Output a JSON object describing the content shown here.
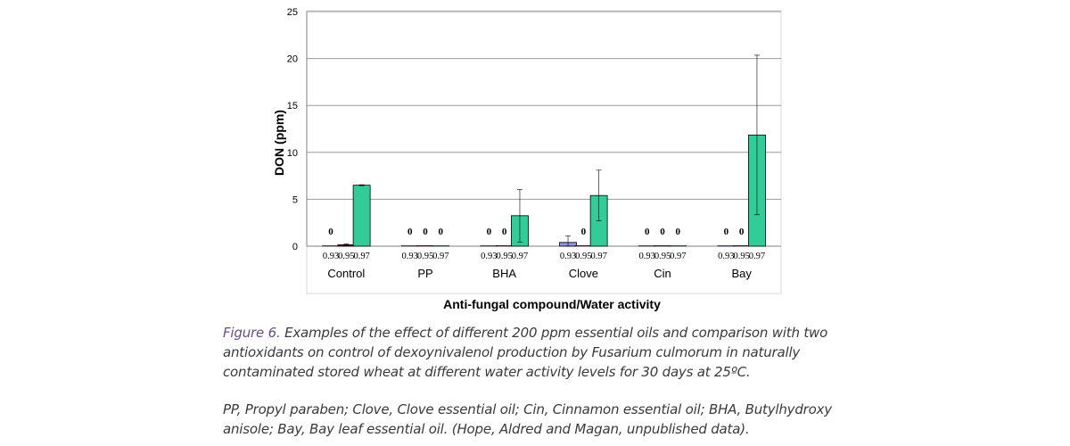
{
  "chart_data": {
    "type": "bar",
    "xlabel": "Anti-fungal compound/Water activity",
    "ylabel": "DON (ppm)",
    "ylim": [
      0,
      25
    ],
    "yticks": [
      "0",
      "5",
      "10",
      "15",
      "20",
      "25"
    ],
    "grid": true,
    "water_activities": [
      "0.93",
      "0.95",
      "0.97"
    ],
    "series_colors": [
      "#8f8fe6",
      "#7a1f45",
      "#33cc99"
    ],
    "groups": [
      {
        "label": "Control",
        "values": [
          0,
          0.15,
          6.5
        ],
        "errors": [
          0,
          0.1,
          0.05
        ],
        "zero_labels": [
          "0",
          "",
          ""
        ]
      },
      {
        "label": "PP",
        "values": [
          0,
          0,
          0
        ],
        "errors": [
          0,
          0,
          0
        ],
        "zero_labels": [
          "0",
          "0",
          "0"
        ]
      },
      {
        "label": "BHA",
        "values": [
          0,
          0,
          3.25
        ],
        "errors": [
          0,
          0,
          2.8
        ],
        "zero_labels": [
          "0",
          "0",
          ""
        ]
      },
      {
        "label": "Clove",
        "values": [
          0.4,
          0,
          5.4
        ],
        "errors": [
          0.7,
          0,
          2.7
        ],
        "zero_labels": [
          "",
          "0",
          ""
        ]
      },
      {
        "label": "Cin",
        "values": [
          0,
          0,
          0
        ],
        "errors": [
          0,
          0,
          0
        ],
        "zero_labels": [
          "0",
          "0",
          "0"
        ]
      },
      {
        "label": "Bay",
        "values": [
          0,
          0,
          11.85
        ],
        "errors": [
          0,
          0,
          8.5
        ],
        "zero_labels": [
          "0",
          "0",
          ""
        ]
      }
    ]
  },
  "caption": {
    "figure_label": "Figure 6.",
    "text": " Examples of the effect of different 200 ppm essential oils and comparison with two antioxidants on control of dexoynivalenol production by Fusarium culmorum in naturally contaminated stored wheat at different water activity levels for 30 days at 25ºC.",
    "notes": "PP, Propyl paraben; Clove, Clove essential oil; Cin, Cinnamon essential oil; BHA, Butylhydroxy anisole; Bay, Bay leaf essential oil. (Hope, Aldred and Magan, unpublished data)."
  }
}
